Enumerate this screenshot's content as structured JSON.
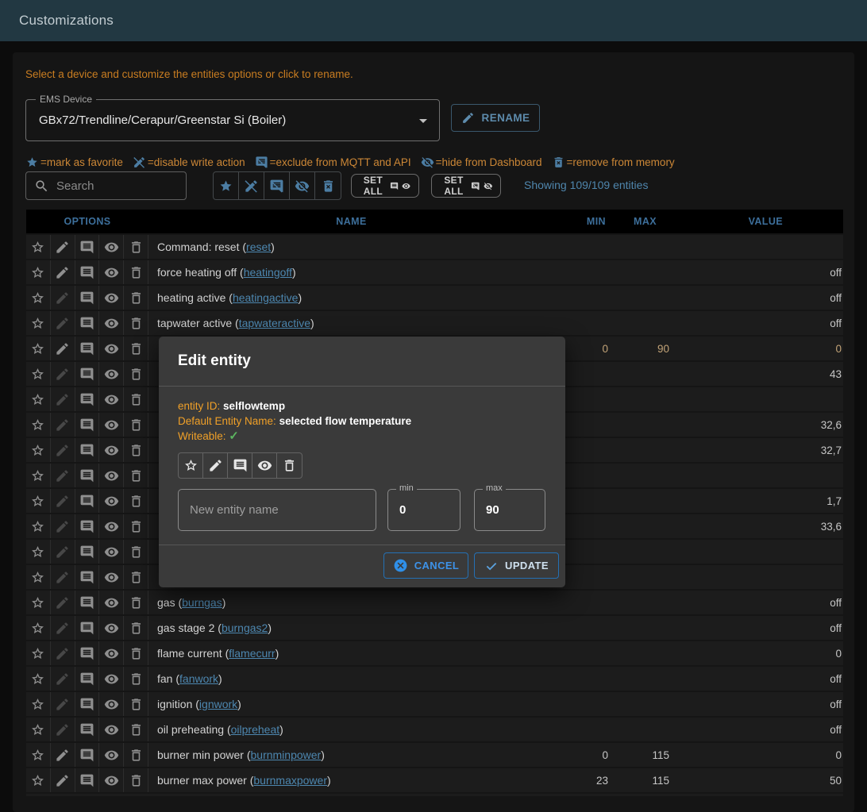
{
  "app_bar": {
    "title": "Customizations"
  },
  "card": {
    "intro": "Select a device and customize the entities options or click to rename.",
    "device_select": {
      "label": "EMS Device",
      "value": "GBx72/Trendline/Cerapur/Greenstar Si (Boiler)"
    },
    "rename_label": "RENAME"
  },
  "legend": [
    {
      "icon": "favorite-icon",
      "text": "=mark as favorite"
    },
    {
      "icon": "disable-write-icon",
      "text": "=disable write action"
    },
    {
      "icon": "exclude-mqtt-icon",
      "text": "=exclude from MQTT and API"
    },
    {
      "icon": "hide-dashboard-icon",
      "text": "=hide from Dashboard"
    },
    {
      "icon": "remove-memory-icon",
      "text": "=remove from memory"
    }
  ],
  "toolbar": {
    "search_placeholder": "Search",
    "set_all_label_1": "SET ALL",
    "set_all_label_2": "SET ALL",
    "showing_text": "Showing 109/109 entities"
  },
  "table": {
    "headers": {
      "options": "OPTIONS",
      "name": "NAME",
      "min": "MIN",
      "max": "MAX",
      "value": "VALUE"
    },
    "rows": [
      {
        "name": "Command: reset",
        "id": "reset",
        "writable": true,
        "min": "",
        "max": "",
        "value": "",
        "selected": false
      },
      {
        "name": "force heating off",
        "id": "heatingoff",
        "writable": true,
        "min": "",
        "max": "",
        "value": "off",
        "selected": false
      },
      {
        "name": "heating active",
        "id": "heatingactive",
        "writable": false,
        "min": "",
        "max": "",
        "value": "off",
        "selected": false
      },
      {
        "name": "tapwater active",
        "id": "tapwateractive",
        "writable": false,
        "min": "",
        "max": "",
        "value": "off",
        "selected": false
      },
      {
        "name": "",
        "id": "",
        "writable": true,
        "min": "0",
        "max": "90",
        "value": "0",
        "selected": true
      },
      {
        "name": "",
        "id": "",
        "writable": false,
        "min": "",
        "max": "",
        "value": "43",
        "selected": false
      },
      {
        "name": "",
        "id": "",
        "writable": false,
        "min": "",
        "max": "",
        "value": "",
        "selected": false
      },
      {
        "name": "",
        "id": "",
        "writable": false,
        "min": "",
        "max": "",
        "value": "32,6",
        "selected": false
      },
      {
        "name": "",
        "id": "",
        "writable": false,
        "min": "",
        "max": "",
        "value": "32,7",
        "selected": false
      },
      {
        "name": "",
        "id": "",
        "writable": false,
        "min": "",
        "max": "",
        "value": "",
        "selected": false
      },
      {
        "name": "",
        "id": "",
        "writable": false,
        "min": "",
        "max": "",
        "value": "1,7",
        "selected": false
      },
      {
        "name": "",
        "id": "",
        "writable": false,
        "min": "",
        "max": "",
        "value": "33,6",
        "selected": false
      },
      {
        "name": "",
        "id": "",
        "writable": false,
        "min": "",
        "max": "",
        "value": "",
        "selected": false
      },
      {
        "name": "",
        "id": "",
        "writable": false,
        "min": "",
        "max": "",
        "value": "",
        "selected": false
      },
      {
        "name": "gas",
        "id": "burngas",
        "writable": false,
        "min": "",
        "max": "",
        "value": "off",
        "selected": false
      },
      {
        "name": "gas stage 2",
        "id": "burngas2",
        "writable": false,
        "min": "",
        "max": "",
        "value": "off",
        "selected": false
      },
      {
        "name": "flame current",
        "id": "flamecurr",
        "writable": false,
        "min": "",
        "max": "",
        "value": "0",
        "selected": false
      },
      {
        "name": "fan",
        "id": "fanwork",
        "writable": false,
        "min": "",
        "max": "",
        "value": "off",
        "selected": false
      },
      {
        "name": "ignition",
        "id": "ignwork",
        "writable": false,
        "min": "",
        "max": "",
        "value": "off",
        "selected": false
      },
      {
        "name": "oil preheating",
        "id": "oilpreheat",
        "writable": false,
        "min": "",
        "max": "",
        "value": "off",
        "selected": false
      },
      {
        "name": "burner min power",
        "id": "burnminpower",
        "writable": true,
        "min": "0",
        "max": "115",
        "value": "0",
        "selected": false
      },
      {
        "name": "burner max power",
        "id": "burnmaxpower",
        "writable": true,
        "min": "23",
        "max": "115",
        "value": "50",
        "selected": false
      }
    ]
  },
  "modal": {
    "title": "Edit entity",
    "entity_id_label": "entity ID:",
    "entity_id": "selflowtemp",
    "default_name_label": "Default Entity Name:",
    "default_name": "selected flow temperature",
    "writeable_label": "Writeable:",
    "writeable_check": "✓",
    "name_placeholder": "New entity name",
    "min_label": "min",
    "min_value": "0",
    "max_label": "max",
    "max_value": "90",
    "cancel_label": "CANCEL",
    "update_label": "UPDATE"
  },
  "icons": {
    "toolbar_group": [
      "favorite-icon",
      "disable-write-icon",
      "exclude-mqtt-icon",
      "hide-dashboard-icon",
      "remove-memory-icon"
    ],
    "row_options": [
      "favorite-icon",
      "edit-icon",
      "mqtt-icon",
      "visibility-icon",
      "delete-icon"
    ],
    "set_all_1": [
      "mqtt-icon",
      "visibility-icon"
    ],
    "set_all_2": [
      "exclude-mqtt-icon",
      "hide-dashboard-icon"
    ]
  },
  "colors": {
    "appbar": "#223842",
    "accent_blue": "#2f8fe8",
    "link_blue": "#4d87b0",
    "orange": "#cc8736",
    "modal_orange": "#f0a028",
    "success_green": "#5cb660"
  }
}
